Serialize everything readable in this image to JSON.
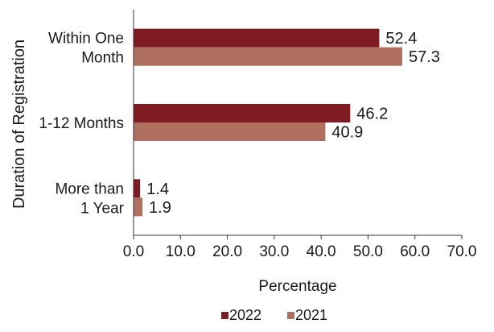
{
  "chart_data": {
    "type": "bar",
    "orientation": "horizontal",
    "categories": [
      [
        "Within One",
        "Month"
      ],
      [
        "1-12 Months"
      ],
      [
        "More than",
        "1 Year"
      ]
    ],
    "series": [
      {
        "name": "2022",
        "values": [
          52.4,
          46.2,
          1.4
        ],
        "color": "#7f1b22"
      },
      {
        "name": "2021",
        "values": [
          57.3,
          40.9,
          1.9
        ],
        "color": "#b0705f"
      }
    ],
    "data_labels": [
      [
        "52.4",
        "46.2",
        "1.4"
      ],
      [
        "57.3",
        "40.9",
        "1.9"
      ]
    ],
    "xlim": [
      0,
      70
    ],
    "xticks": [
      "0.0",
      "10.0",
      "20.0",
      "30.0",
      "40.0",
      "50.0",
      "60.0",
      "70.0"
    ],
    "xlabel": "Percentage",
    "ylabel": "Duration of Registration",
    "legend_position": "bottom",
    "grid": false
  }
}
